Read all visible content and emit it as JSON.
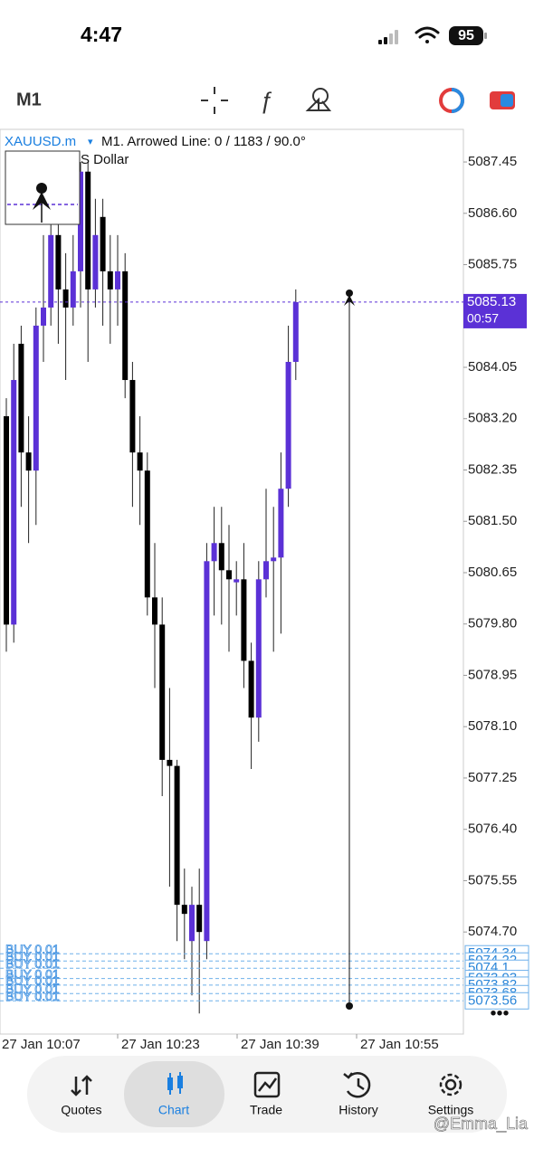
{
  "status_bar": {
    "time": "4:47",
    "battery": "95"
  },
  "toolbar": {
    "timeframe": "M1"
  },
  "chart_data": {
    "type": "candlestick",
    "symbol": "XAUUSD.m",
    "symbol_menu": "▾",
    "info": "M1. Arrowed Line: 0 / 1183 / 90.0°",
    "subtitle": "S Dollar",
    "up_color": "#5b31d6",
    "down_color": "#000000",
    "open": [
      5083.24,
      5079.79,
      5084.44,
      5082.64,
      5082.34,
      5084.74,
      5085.04,
      5086.24,
      5085.34,
      5085.04,
      5085.64,
      5087.29,
      5085.34,
      5086.54,
      5085.64,
      5085.34,
      5085.64,
      5083.84,
      5082.64,
      5082.34,
      5080.24,
      5079.79,
      5077.55,
      5077.45,
      5075.15,
      5074.55,
      5075.15,
      5074.55,
      5080.84,
      5081.14,
      5080.69,
      5080.49,
      5080.54,
      5079.19,
      5078.25,
      5080.54,
      5080.84,
      5080.9,
      5082.04,
      5084.14
    ],
    "high": [
      5083.54,
      5084.44,
      5084.74,
      5083.24,
      5085.04,
      5086.24,
      5086.54,
      5086.84,
      5085.94,
      5086.24,
      5087.45,
      5087.45,
      5086.84,
      5086.84,
      5086.24,
      5086.24,
      5085.94,
      5084.14,
      5083.24,
      5082.64,
      5081.14,
      5080.24,
      5078.74,
      5077.55,
      5075.75,
      5075.45,
      5075.75,
      5081.14,
      5081.74,
      5081.74,
      5081.44,
      5080.84,
      5081.14,
      5079.49,
      5080.84,
      5082.04,
      5081.74,
      5082.64,
      5084.74,
      5085.34
    ],
    "low": [
      5079.34,
      5079.49,
      5081.74,
      5081.14,
      5081.44,
      5084.14,
      5084.74,
      5084.44,
      5083.84,
      5084.74,
      5085.04,
      5084.14,
      5085.04,
      5084.74,
      5084.44,
      5084.74,
      5083.54,
      5081.74,
      5081.44,
      5079.94,
      5078.74,
      5076.95,
      5075.45,
      5074.55,
      5074.25,
      5073.65,
      5073.35,
      5074.25,
      5079.94,
      5079.79,
      5079.34,
      5079.94,
      5078.74,
      5077.4,
      5077.85,
      5080.24,
      5079.34,
      5079.64,
      5081.74,
      5083.84
    ],
    "close": [
      5079.79,
      5083.84,
      5082.64,
      5082.34,
      5084.74,
      5085.04,
      5086.24,
      5085.34,
      5085.04,
      5085.64,
      5087.29,
      5085.34,
      5086.24,
      5085.64,
      5085.34,
      5085.64,
      5083.84,
      5082.64,
      5082.34,
      5080.24,
      5079.79,
      5077.55,
      5077.45,
      5075.15,
      5075,
      5075.15,
      5074.7,
      5080.84,
      5081.14,
      5080.69,
      5080.54,
      5080.54,
      5079.19,
      5078.25,
      5080.54,
      5080.84,
      5080.9,
      5082.04,
      5084.14,
      5085.13
    ],
    "ylim": [
      5073.01,
      5087.99
    ],
    "yticks": [
      5087.45,
      {
        "value": 5086.6,
        "label": "5086.60"
      },
      5085.75,
      5084.05,
      {
        "value": 5083.2,
        "label": "5083.20"
      },
      5082.35,
      {
        "value": 5081.5,
        "label": "5081.50"
      },
      5080.65,
      {
        "value": 5079.8,
        "label": "5079.80"
      },
      5078.95,
      {
        "value": 5078.1,
        "label": "5078.10"
      },
      5077.25,
      {
        "value": 5076.4,
        "label": "5076.40"
      },
      5075.55,
      {
        "value": 5074.7,
        "label": "5074.70"
      }
    ],
    "xticks": [
      "27 Jan 10:07",
      "27 Jan 10:23",
      "27 Jan 10:39",
      "27 Jan 10:55"
    ],
    "current_price": 5085.13,
    "countdown": "00:57",
    "orders": [
      {
        "label": "BUY 0.01",
        "price": 5074.34
      },
      {
        "label": "BUY 0.01",
        "price": 5074.22
      },
      {
        "label": "BUY 0.01",
        "price": 5074.1
      },
      {
        "label": "BUY 0.01",
        "price": 5073.93
      },
      {
        "label": "BUY 0.01",
        "price": 5073.82
      },
      {
        "label": "BUY 0.01",
        "price": 5073.68
      },
      {
        "label": "BUY 0.01",
        "price": 5073.56
      }
    ]
  },
  "tab_bar": {
    "tabs": [
      "Quotes",
      "Chart",
      "Trade",
      "History",
      "Settings"
    ]
  },
  "watermark": "@Emma_Lia"
}
